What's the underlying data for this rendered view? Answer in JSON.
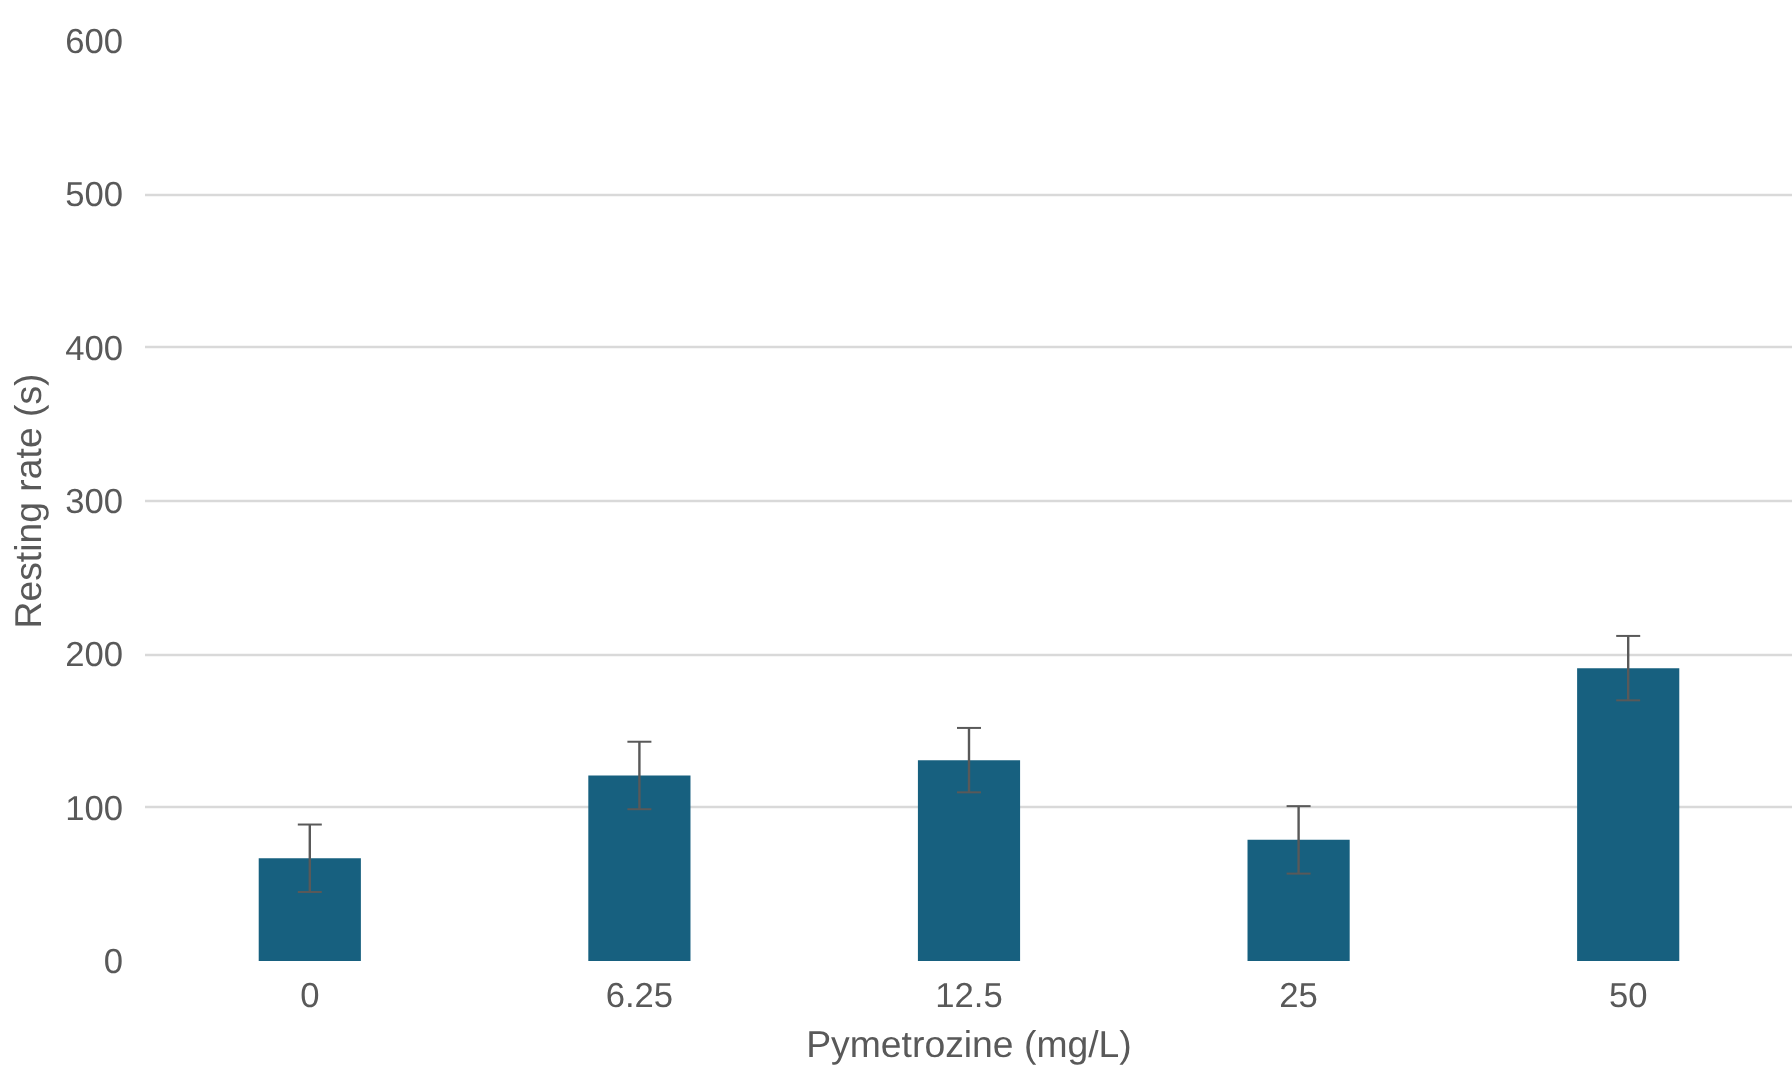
{
  "chart_data": {
    "type": "bar",
    "xlabel": "Pymetrozine (mg/L)",
    "ylabel": "Resting rate (s)",
    "categories": [
      "0",
      "6.25",
      "12.5",
      "25",
      "50"
    ],
    "values": [
      67,
      121,
      131,
      79,
      191
    ],
    "errors": [
      22,
      22,
      21,
      22,
      21
    ],
    "color": "#17607f",
    "ylim": [
      0,
      600
    ],
    "yticks": [
      0,
      100,
      200,
      300,
      400,
      500,
      600
    ],
    "grid": "y"
  }
}
